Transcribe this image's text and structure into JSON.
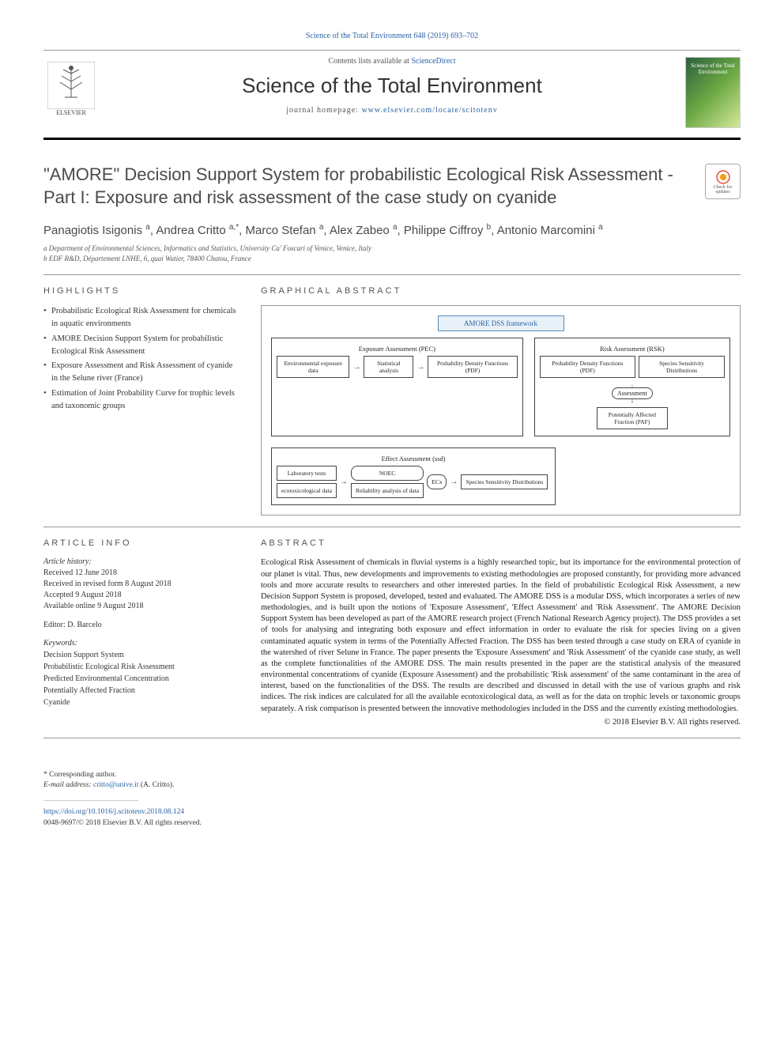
{
  "top_citation": "Science of the Total Environment 648 (2019) 693–702",
  "header": {
    "contents_prefix": "Contents lists available at ",
    "contents_link": "ScienceDirect",
    "journal_name": "Science of the Total Environment",
    "homepage_prefix": "journal homepage: ",
    "homepage_url": "www.elsevier.com/locate/scitotenv",
    "publisher": "ELSEVIER",
    "cover_text": "Science of the Total Environment"
  },
  "check_badge": "Check for updates",
  "article": {
    "title": "\"AMORE\" Decision Support System for probabilistic Ecological Risk Assessment - Part I: Exposure and risk assessment of the case study on cyanide",
    "authors_html": "Panagiotis Isigonis <sup>a</sup>, Andrea Critto <sup>a,*</sup>, Marco Stefan <sup>a</sup>, Alex Zabeo <sup>a</sup>, Philippe Ciffroy <sup>b</sup>, Antonio Marcomini <sup>a</sup>",
    "affiliations": [
      "a Department of Environmental Sciences, Informatics and Statistics, University Ca' Foscari of Venice, Venice, Italy",
      "b EDF R&D, Département LNHE, 6, quai Watier, 78400 Chatou, France"
    ]
  },
  "sections": {
    "highlights": "HIGHLIGHTS",
    "graphical": "GRAPHICAL ABSTRACT",
    "article_info": "ARTICLE INFO",
    "abstract": "ABSTRACT"
  },
  "highlights": [
    "Probabilistic Ecological Risk Assessment for chemicals in aquatic environments",
    "AMORE Decision Support System for probabilistic Ecological Risk Assessment",
    "Exposure Assessment and Risk Assessment of cyanide in the Selune river (France)",
    "Estimation of Joint Probability Curve for trophic levels and taxonomic groups"
  ],
  "graphical_abstract": {
    "framework_title": "AMORE DSS framework",
    "exposure": {
      "header": "Exposure Assessment (PEC)",
      "box1": "Environmental exposure data",
      "box2": "Statistical analysis",
      "box3": "Probability Density Functions (PDF)"
    },
    "risk": {
      "header": "Risk Assessment (RSK)",
      "box1": "Probability Density Functions (PDF)",
      "box2": "Species Sensitivity Distributions",
      "assess": "Assessment",
      "paf": "Potentially Affected Fraction (PAF)"
    },
    "effect": {
      "header": "Effect Assessment (ssd)",
      "lab": "Laboratory tests",
      "eco": "ecotoxicological data",
      "noec": "NOEC",
      "ec": "ECx",
      "rel": "Reliability analysis of data",
      "ssd": "Species Sensitivity Distributions"
    }
  },
  "article_info": {
    "history_label": "Article history:",
    "received": "Received 12 June 2018",
    "revised": "Received in revised form 8 August 2018",
    "accepted": "Accepted 9 August 2018",
    "online": "Available online 9 August 2018",
    "editor_label": "Editor: ",
    "editor": "D. Barcelo",
    "keywords_label": "Keywords:",
    "keywords": [
      "Decision Support System",
      "Probabilistic Ecological Risk Assessment",
      "Predicted Environmental Concentration",
      "Potentially Affected Fraction",
      "Cyanide"
    ]
  },
  "abstract": "Ecological Risk Assessment of chemicals in fluvial systems is a highly researched topic, but its importance for the environmental protection of our planet is vital. Thus, new developments and improvements to existing methodologies are proposed constantly, for providing more advanced tools and more accurate results to researchers and other interested parties. In the field of probabilistic Ecological Risk Assessment, a new Decision Support System is proposed, developed, tested and evaluated. The AMORE DSS is a modular DSS, which incorporates a series of new methodologies, and is built upon the notions of 'Exposure Assessment', 'Effect Assessment' and 'Risk Assessment'. The AMORE Decision Support System has been developed as part of the AMORE research project (French National Research Agency project). The DSS provides a set of tools for analysing and integrating both exposure and effect information in order to evaluate the risk for species living on a given contaminated aquatic system in terms of the Potentially Affected Fraction. The DSS has been tested through a case study on ERA of cyanide in the watershed of river Selune in France. The paper presents the 'Exposure Assessment' and 'Risk Assessment' of the cyanide case study, as well as the complete functionalities of the AMORE DSS. The main results presented in the paper are the statistical analysis of the measured environmental concentrations of cyanide (Exposure Assessment) and the probabilistic 'Risk assessment' of the same contaminant in the area of interest, based on the functionalities of the DSS. The results are described and discussed in detail with the use of various graphs and risk indices. The risk indices are calculated for all the available ecotoxicological data, as well as for the data on trophic levels or taxonomic groups separately. A risk comparison is presented between the innovative methodologies included in the DSS and the currently existing methodologies.",
  "copyright": "© 2018 Elsevier B.V. All rights reserved.",
  "footer": {
    "corr_label": "* Corresponding author.",
    "email_label": "E-mail address: ",
    "email": "critto@unive.it",
    "email_name": " (A. Critto).",
    "doi": "https://doi.org/10.1016/j.scitotenv.2018.08.124",
    "issn_line": "0048-9697/© 2018 Elsevier B.V. All rights reserved."
  },
  "colors": {
    "link": "#2a62a5",
    "heading": "#4a4a4a",
    "text": "#222222",
    "muted": "#555555",
    "rule": "#999999"
  }
}
